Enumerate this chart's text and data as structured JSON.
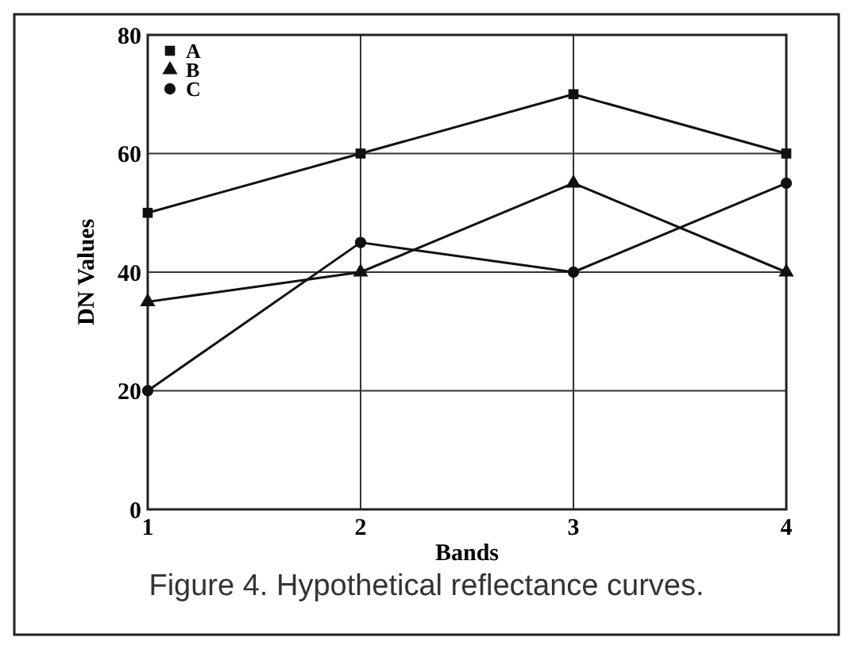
{
  "chart_data": {
    "type": "line",
    "xlabel": "Bands",
    "ylabel": "DN Values",
    "annotations": [
      "Figure 4. Hypothetical reflectance curves."
    ],
    "x": [
      1,
      2,
      3,
      4
    ],
    "xlim": [
      1,
      4
    ],
    "xticks": [
      1,
      2,
      3,
      4
    ],
    "ylim": [
      0,
      80
    ],
    "yticks": [
      0,
      20,
      40,
      60,
      80
    ],
    "grid": true,
    "legend": "top left",
    "series": [
      {
        "name": "A",
        "color": "#111111",
        "marker": "square",
        "values": [
          50,
          60,
          70,
          60
        ]
      },
      {
        "name": "B",
        "color": "#111111",
        "marker": "triangle",
        "values": [
          35,
          40,
          55,
          40
        ]
      },
      {
        "name": "C",
        "color": "#111111",
        "marker": "circle",
        "values": [
          20,
          45,
          40,
          55
        ]
      }
    ]
  }
}
